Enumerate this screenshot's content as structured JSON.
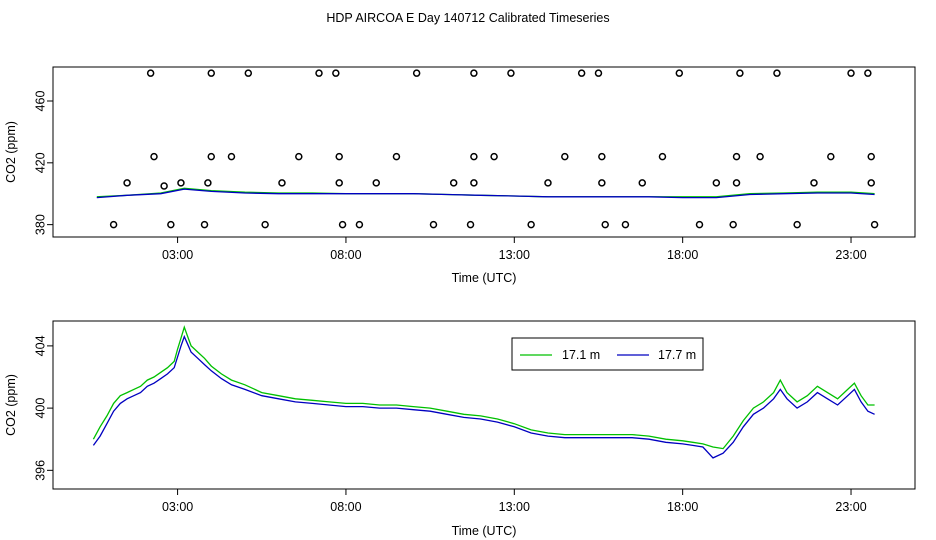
{
  "title": "HDP AIRCOA E  Day 140712  Calibrated Timeseries",
  "chart_data": [
    {
      "type": "line",
      "xlabel": "Time (UTC)",
      "ylabel": "CO2 (ppm)",
      "xlim": [
        -0.7,
        24.9
      ],
      "ylim": [
        372,
        482
      ],
      "x_ticks": [
        3,
        8,
        13,
        18,
        23
      ],
      "x_tick_labels": [
        "03:00",
        "08:00",
        "13:00",
        "18:00",
        "23:00"
      ],
      "y_ticks": [
        380,
        420,
        460
      ],
      "y_tick_labels": [
        "380",
        "420",
        "460"
      ],
      "series": [
        {
          "name": "17.1 m",
          "color": "#00c000",
          "x": [
            0.6,
            1.5,
            2.5,
            3.2,
            4,
            5,
            6,
            7,
            8,
            9,
            10,
            11,
            12,
            13,
            14,
            15,
            16,
            17,
            18,
            19,
            20,
            21,
            22,
            23,
            23.7
          ],
          "y": [
            398,
            399,
            400.5,
            403.5,
            402,
            401,
            400.5,
            400.5,
            400,
            400,
            400,
            399.5,
            399,
            398.5,
            398,
            398,
            398,
            398,
            398,
            398,
            400,
            400.5,
            401,
            401,
            400
          ]
        },
        {
          "name": "17.7 m",
          "color": "#0000c0",
          "x": [
            0.6,
            1.5,
            2.5,
            3.2,
            4,
            5,
            6,
            7,
            8,
            9,
            10,
            11,
            12,
            13,
            14,
            15,
            16,
            17,
            18,
            19,
            20,
            21,
            22,
            23,
            23.7
          ],
          "y": [
            397.5,
            399,
            400,
            403,
            401.5,
            400.5,
            400,
            400,
            400,
            400,
            400,
            399.5,
            399,
            398.5,
            398,
            398,
            398,
            398,
            397.5,
            397.5,
            399.5,
            400,
            400.5,
            400.5,
            399.5
          ]
        }
      ],
      "calibration_points": [
        {
          "x": 1.1,
          "y": 380
        },
        {
          "x": 2.3,
          "y": 424
        },
        {
          "x": 2.6,
          "y": 405
        },
        {
          "x": 1.5,
          "y": 407
        },
        {
          "x": 2.2,
          "y": 478
        },
        {
          "x": 2.8,
          "y": 380
        },
        {
          "x": 3.1,
          "y": 407
        },
        {
          "x": 3.8,
          "y": 380
        },
        {
          "x": 3.9,
          "y": 407
        },
        {
          "x": 4.0,
          "y": 424
        },
        {
          "x": 4.0,
          "y": 478
        },
        {
          "x": 4.6,
          "y": 424
        },
        {
          "x": 5.1,
          "y": 478
        },
        {
          "x": 5.6,
          "y": 380
        },
        {
          "x": 6.1,
          "y": 407
        },
        {
          "x": 6.6,
          "y": 424
        },
        {
          "x": 7.2,
          "y": 478
        },
        {
          "x": 7.7,
          "y": 478
        },
        {
          "x": 7.8,
          "y": 424
        },
        {
          "x": 7.8,
          "y": 407
        },
        {
          "x": 7.9,
          "y": 380
        },
        {
          "x": 8.4,
          "y": 380
        },
        {
          "x": 8.9,
          "y": 407
        },
        {
          "x": 9.5,
          "y": 424
        },
        {
          "x": 10.1,
          "y": 478
        },
        {
          "x": 10.6,
          "y": 380
        },
        {
          "x": 11.2,
          "y": 407
        },
        {
          "x": 11.7,
          "y": 380
        },
        {
          "x": 11.8,
          "y": 407
        },
        {
          "x": 11.8,
          "y": 424
        },
        {
          "x": 11.8,
          "y": 478
        },
        {
          "x": 12.4,
          "y": 424
        },
        {
          "x": 12.9,
          "y": 478
        },
        {
          "x": 13.5,
          "y": 380
        },
        {
          "x": 14.0,
          "y": 407
        },
        {
          "x": 14.5,
          "y": 424
        },
        {
          "x": 15.0,
          "y": 478
        },
        {
          "x": 15.5,
          "y": 478
        },
        {
          "x": 15.6,
          "y": 424
        },
        {
          "x": 15.6,
          "y": 407
        },
        {
          "x": 15.7,
          "y": 380
        },
        {
          "x": 16.3,
          "y": 380
        },
        {
          "x": 16.8,
          "y": 407
        },
        {
          "x": 17.4,
          "y": 424
        },
        {
          "x": 17.9,
          "y": 478
        },
        {
          "x": 18.5,
          "y": 380
        },
        {
          "x": 19.0,
          "y": 407
        },
        {
          "x": 19.5,
          "y": 380
        },
        {
          "x": 19.6,
          "y": 407
        },
        {
          "x": 19.6,
          "y": 424
        },
        {
          "x": 19.7,
          "y": 478
        },
        {
          "x": 20.3,
          "y": 424
        },
        {
          "x": 20.8,
          "y": 478
        },
        {
          "x": 21.4,
          "y": 380
        },
        {
          "x": 21.9,
          "y": 407
        },
        {
          "x": 22.4,
          "y": 424
        },
        {
          "x": 23.0,
          "y": 478
        },
        {
          "x": 23.5,
          "y": 478
        },
        {
          "x": 23.6,
          "y": 424
        },
        {
          "x": 23.6,
          "y": 407
        },
        {
          "x": 23.7,
          "y": 380
        }
      ]
    },
    {
      "type": "line",
      "xlabel": "Time (UTC)",
      "ylabel": "CO2 (ppm)",
      "xlim": [
        -0.7,
        24.9
      ],
      "ylim": [
        394.8,
        405.6
      ],
      "x_ticks": [
        3,
        8,
        13,
        18,
        23
      ],
      "x_tick_labels": [
        "03:00",
        "08:00",
        "13:00",
        "18:00",
        "23:00"
      ],
      "y_ticks": [
        396,
        400,
        404
      ],
      "y_tick_labels": [
        "396",
        "400",
        "404"
      ],
      "legend": "top-right",
      "series": [
        {
          "name": "17.1 m",
          "color": "#00c000",
          "x": [
            0.5,
            0.7,
            0.9,
            1.1,
            1.3,
            1.5,
            1.7,
            1.9,
            2.1,
            2.3,
            2.5,
            2.7,
            2.9,
            3.0,
            3.1,
            3.2,
            3.3,
            3.4,
            3.6,
            3.8,
            4.0,
            4.3,
            4.6,
            5.0,
            5.5,
            6.0,
            6.5,
            7.0,
            7.5,
            8.0,
            8.5,
            9.0,
            9.5,
            10.0,
            10.5,
            11.0,
            11.5,
            12.0,
            12.5,
            13.0,
            13.5,
            14.0,
            14.5,
            15.0,
            15.5,
            16.0,
            16.5,
            17.0,
            17.5,
            18.0,
            18.3,
            18.6,
            18.9,
            19.2,
            19.5,
            19.8,
            20.1,
            20.4,
            20.7,
            20.9,
            21.1,
            21.4,
            21.7,
            22.0,
            22.3,
            22.6,
            22.9,
            23.1,
            23.3,
            23.5,
            23.7
          ],
          "y": [
            398,
            398.8,
            399.5,
            400.3,
            400.8,
            401,
            401.2,
            401.4,
            401.8,
            402,
            402.3,
            402.6,
            403,
            403.8,
            404.5,
            405.2,
            404.6,
            404,
            403.6,
            403.2,
            402.7,
            402.2,
            401.8,
            401.5,
            401,
            400.8,
            400.6,
            400.5,
            400.4,
            400.3,
            400.3,
            400.2,
            400.2,
            400.1,
            400,
            399.8,
            399.6,
            399.5,
            399.3,
            399,
            398.6,
            398.4,
            398.3,
            398.3,
            398.3,
            398.3,
            398.3,
            398.2,
            398,
            397.9,
            397.8,
            397.7,
            397.5,
            397.4,
            398.2,
            399.2,
            400,
            400.4,
            401,
            401.8,
            401,
            400.4,
            400.8,
            401.4,
            401,
            400.6,
            401.2,
            401.6,
            400.8,
            400.2,
            400.2
          ]
        },
        {
          "name": "17.7 m",
          "color": "#0000c0",
          "x": [
            0.5,
            0.7,
            0.9,
            1.1,
            1.3,
            1.5,
            1.7,
            1.9,
            2.1,
            2.3,
            2.5,
            2.7,
            2.9,
            3.0,
            3.1,
            3.2,
            3.3,
            3.4,
            3.6,
            3.8,
            4.0,
            4.3,
            4.6,
            5.0,
            5.5,
            6.0,
            6.5,
            7.0,
            7.5,
            8.0,
            8.5,
            9.0,
            9.5,
            10.0,
            10.5,
            11.0,
            11.5,
            12.0,
            12.5,
            13.0,
            13.5,
            14.0,
            14.5,
            15.0,
            15.5,
            16.0,
            16.5,
            17.0,
            17.5,
            18.0,
            18.3,
            18.6,
            18.9,
            19.2,
            19.5,
            19.8,
            20.1,
            20.4,
            20.7,
            20.9,
            21.1,
            21.4,
            21.7,
            22.0,
            22.3,
            22.6,
            22.9,
            23.1,
            23.3,
            23.5,
            23.7
          ],
          "y": [
            397.6,
            398.2,
            399,
            399.8,
            400.3,
            400.6,
            400.8,
            401,
            401.4,
            401.6,
            401.9,
            402.2,
            402.6,
            403.3,
            404,
            404.6,
            404.1,
            403.6,
            403.2,
            402.8,
            402.4,
            401.9,
            401.5,
            401.2,
            400.8,
            400.6,
            400.4,
            400.3,
            400.2,
            400.1,
            400.1,
            400,
            400,
            399.9,
            399.8,
            399.6,
            399.4,
            399.3,
            399.1,
            398.8,
            398.4,
            398.2,
            398.1,
            398.1,
            398.1,
            398.1,
            398.1,
            398,
            397.8,
            397.7,
            397.6,
            397.5,
            396.8,
            397.1,
            397.8,
            398.8,
            399.6,
            400,
            400.6,
            401.2,
            400.6,
            400,
            400.4,
            401,
            400.6,
            400.2,
            400.8,
            401.2,
            400.4,
            399.8,
            399.6
          ]
        }
      ]
    }
  ]
}
